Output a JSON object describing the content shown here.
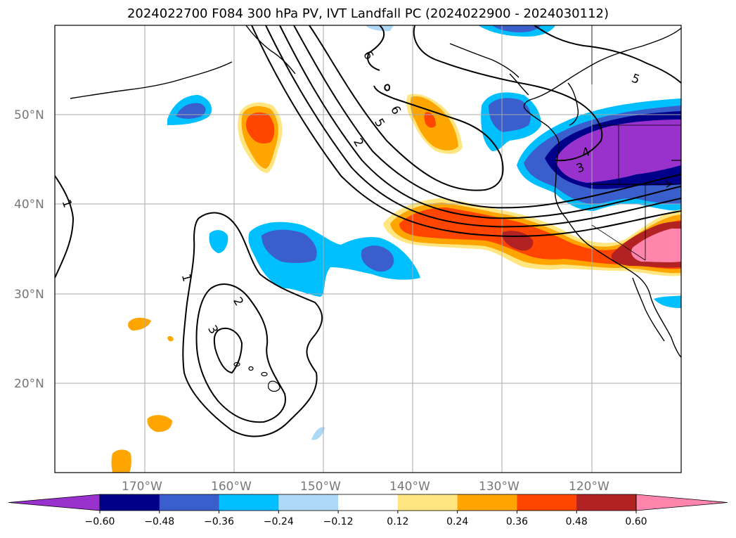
{
  "title": "2024022700 F084 300 hPa PV, IVT Landfall PC (2024022900 - 2024030112)",
  "map": {
    "lon_range": [
      -180,
      -110
    ],
    "lat_range": [
      10,
      60
    ],
    "lon_ticks": [
      -170,
      -160,
      -150,
      -140,
      -130,
      -120
    ],
    "lon_tick_labels": [
      "170°W",
      "160°W",
      "150°W",
      "140°W",
      "130°W",
      "120°W"
    ],
    "lat_ticks": [
      20,
      30,
      40,
      50
    ],
    "lat_tick_labels": [
      "20°N",
      "30°N",
      "40°N",
      "50°N"
    ],
    "grid": true,
    "contour_labels": [
      "1",
      "2",
      "3",
      "1",
      "2",
      "5",
      "6",
      "6",
      "5",
      "3",
      "4"
    ]
  },
  "colorbar": {
    "levels": [
      -0.6,
      -0.48,
      -0.36,
      -0.24,
      -0.12,
      0.12,
      0.24,
      0.36,
      0.48,
      0.6
    ],
    "tick_labels": [
      "−0.60",
      "−0.48",
      "−0.36",
      "−0.24",
      "−0.12",
      "0.12",
      "0.24",
      "0.36",
      "0.48",
      "0.60"
    ],
    "colors": [
      "#9932cc",
      "#00008b",
      "#3a5fcd",
      "#00bfff",
      "#add8f6",
      "#ffffff",
      "#ffe680",
      "#ffa500",
      "#ff4500",
      "#b22222",
      "#ff85ad"
    ]
  }
}
